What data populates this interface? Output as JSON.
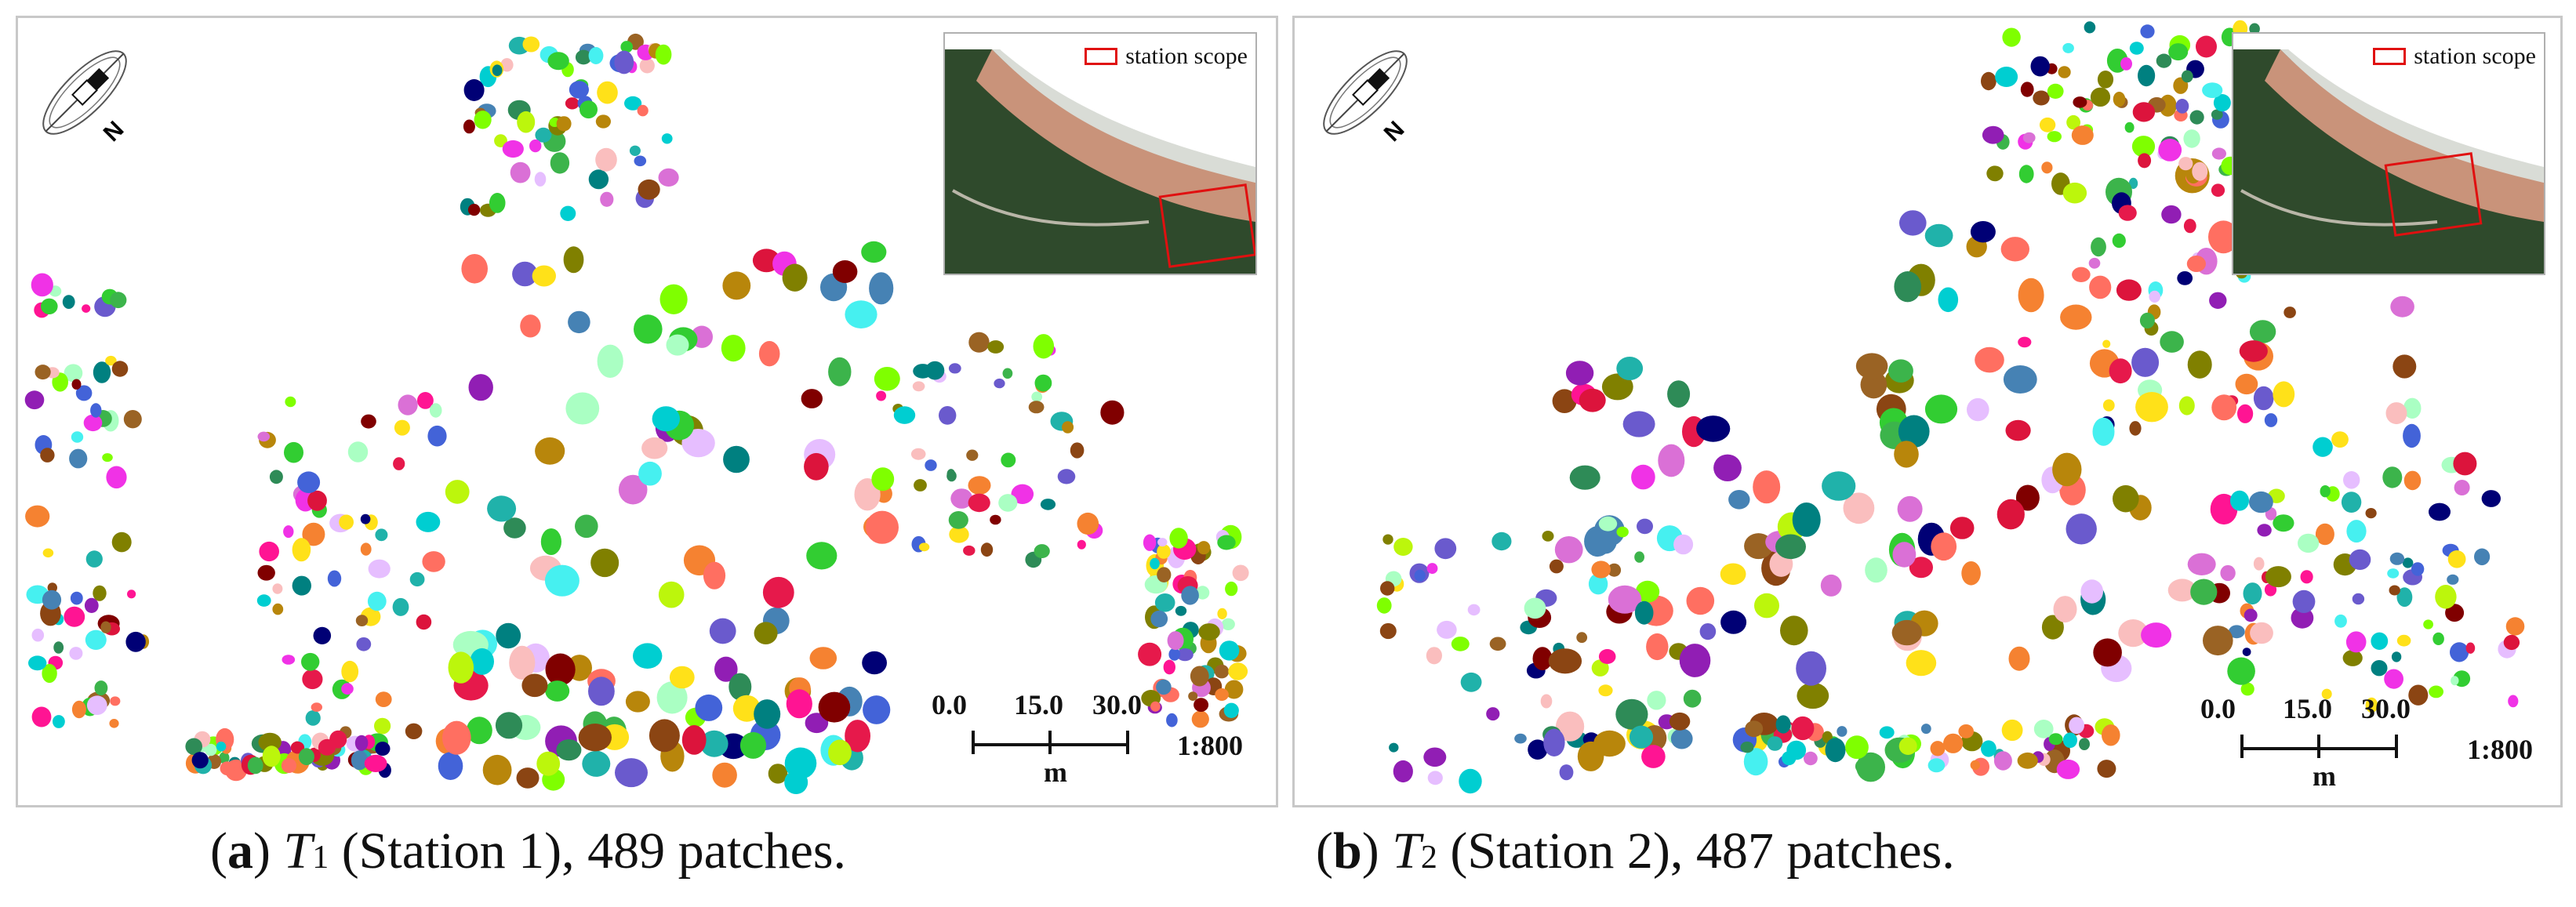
{
  "panels": [
    {
      "id": "a",
      "inset_legend": "station scope",
      "scale_ticks": [
        "0.0",
        "15.0",
        "30.0"
      ],
      "scale_unit": "m",
      "scale_ratio": "1:800",
      "caption": {
        "letter": "a",
        "var": "T",
        "sub": "1",
        "text": " (Station 1), 489 patches."
      }
    },
    {
      "id": "b",
      "inset_legend": "station scope",
      "scale_ticks": [
        "0.0",
        "15.0",
        "30.0"
      ],
      "scale_unit": "m",
      "scale_ratio": "1:800",
      "caption": {
        "letter": "b",
        "var": "T",
        "sub": "2",
        "text": " (Station 2), 487 patches."
      }
    }
  ],
  "compass_letter": "N",
  "palette": [
    "#e6194b",
    "#3cb44b",
    "#ffe119",
    "#4363d8",
    "#f58231",
    "#911eb4",
    "#46f0f0",
    "#f032e6",
    "#bcf60c",
    "#fabebe",
    "#008080",
    "#e6beff",
    "#9a6324",
    "#800000",
    "#aaffc3",
    "#808000",
    "#000075",
    "#2e8b57",
    "#ff6f61",
    "#6a5acd",
    "#20b2aa",
    "#ff1493",
    "#00ced1",
    "#8b4513",
    "#7fff00",
    "#dc143c",
    "#4682b4",
    "#da70d6",
    "#32cd32",
    "#b8860b"
  ],
  "inset_colors": {
    "forest": "#2f4a2c",
    "sand": "#c9937a",
    "sea": "#d9dcd6",
    "box": "#e01010"
  }
}
